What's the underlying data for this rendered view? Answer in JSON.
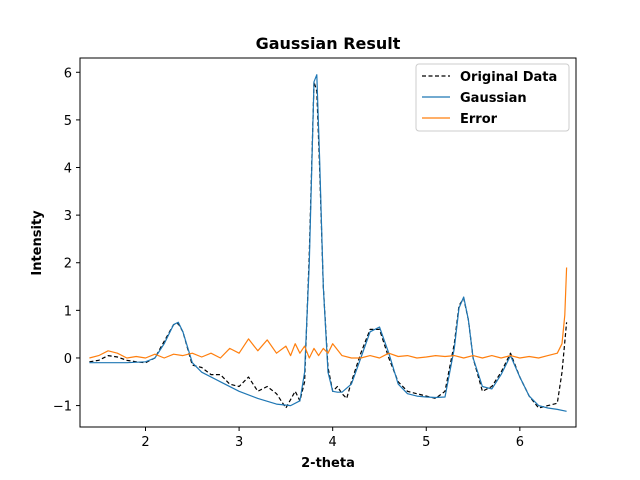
{
  "chart_data": {
    "type": "line",
    "title": "Gaussian Result",
    "xlabel": "2-theta",
    "ylabel": "Intensity",
    "xlim": [
      1.3,
      6.6
    ],
    "ylim": [
      -1.45,
      6.3
    ],
    "xticks": [
      2,
      3,
      4,
      5,
      6
    ],
    "yticks": [
      -1,
      0,
      1,
      2,
      3,
      4,
      5,
      6
    ],
    "grid": false,
    "legend_position": "top-right",
    "series": [
      {
        "name": "Original Data",
        "color": "#000000",
        "dash": "dashed",
        "x": [
          1.4,
          1.5,
          1.6,
          1.7,
          1.8,
          1.9,
          2.0,
          2.1,
          2.2,
          2.3,
          2.35,
          2.4,
          2.5,
          2.6,
          2.7,
          2.8,
          2.9,
          3.0,
          3.1,
          3.2,
          3.3,
          3.4,
          3.5,
          3.6,
          3.65,
          3.7,
          3.75,
          3.8,
          3.83,
          3.86,
          3.9,
          3.95,
          4.0,
          4.05,
          4.1,
          4.15,
          4.2,
          4.3,
          4.4,
          4.5,
          4.6,
          4.7,
          4.8,
          4.9,
          5.0,
          5.1,
          5.2,
          5.3,
          5.35,
          5.4,
          5.45,
          5.5,
          5.6,
          5.7,
          5.8,
          5.9,
          6.0,
          6.1,
          6.2,
          6.3,
          6.4,
          6.45,
          6.5
        ],
        "values": [
          -0.08,
          -0.05,
          0.05,
          0.02,
          -0.05,
          -0.08,
          -0.1,
          0.0,
          0.35,
          0.7,
          0.72,
          0.55,
          -0.15,
          -0.2,
          -0.35,
          -0.35,
          -0.55,
          -0.6,
          -0.4,
          -0.7,
          -0.6,
          -0.75,
          -1.05,
          -0.7,
          -0.9,
          -0.5,
          2.2,
          5.8,
          5.6,
          4.0,
          1.5,
          -0.2,
          -0.7,
          -0.6,
          -0.75,
          -0.85,
          -0.5,
          0.1,
          0.6,
          0.6,
          0.0,
          -0.5,
          -0.7,
          -0.75,
          -0.8,
          -0.85,
          -0.7,
          0.3,
          1.1,
          1.25,
          0.8,
          0.0,
          -0.7,
          -0.6,
          -0.3,
          0.1,
          -0.4,
          -0.8,
          -1.05,
          -1.0,
          -0.95,
          -0.3,
          0.75
        ]
      },
      {
        "name": "Gaussian",
        "color": "#1f77b4",
        "dash": "solid",
        "x": [
          1.4,
          1.6,
          1.8,
          2.0,
          2.1,
          2.2,
          2.3,
          2.35,
          2.4,
          2.5,
          2.6,
          2.8,
          3.0,
          3.2,
          3.4,
          3.55,
          3.65,
          3.7,
          3.75,
          3.8,
          3.83,
          3.86,
          3.9,
          3.95,
          4.0,
          4.05,
          4.1,
          4.2,
          4.3,
          4.4,
          4.5,
          4.6,
          4.7,
          4.8,
          4.9,
          5.0,
          5.1,
          5.2,
          5.3,
          5.35,
          5.4,
          5.45,
          5.5,
          5.6,
          5.7,
          5.8,
          5.9,
          6.0,
          6.1,
          6.2,
          6.3,
          6.4,
          6.5
        ],
        "values": [
          -0.1,
          -0.1,
          -0.1,
          -0.08,
          0.0,
          0.3,
          0.7,
          0.75,
          0.55,
          -0.1,
          -0.3,
          -0.5,
          -0.7,
          -0.85,
          -0.97,
          -1.0,
          -0.9,
          -0.3,
          2.0,
          5.8,
          5.95,
          4.2,
          1.5,
          -0.3,
          -0.7,
          -0.72,
          -0.72,
          -0.55,
          0.0,
          0.55,
          0.65,
          0.1,
          -0.55,
          -0.75,
          -0.8,
          -0.82,
          -0.83,
          -0.82,
          0.2,
          1.05,
          1.28,
          0.8,
          0.0,
          -0.6,
          -0.65,
          -0.35,
          0.05,
          -0.4,
          -0.8,
          -1.0,
          -1.05,
          -1.08,
          -1.12
        ]
      },
      {
        "name": "Error",
        "color": "#ff7f0e",
        "dash": "solid",
        "x": [
          1.4,
          1.5,
          1.6,
          1.7,
          1.8,
          1.9,
          2.0,
          2.1,
          2.2,
          2.3,
          2.4,
          2.5,
          2.6,
          2.7,
          2.8,
          2.9,
          3.0,
          3.1,
          3.2,
          3.3,
          3.4,
          3.5,
          3.55,
          3.6,
          3.65,
          3.7,
          3.75,
          3.8,
          3.85,
          3.9,
          3.95,
          4.0,
          4.1,
          4.2,
          4.3,
          4.4,
          4.5,
          4.6,
          4.7,
          4.8,
          4.9,
          5.0,
          5.1,
          5.2,
          5.3,
          5.4,
          5.5,
          5.6,
          5.7,
          5.8,
          5.9,
          6.0,
          6.1,
          6.2,
          6.3,
          6.4,
          6.45,
          6.48,
          6.5
        ],
        "values": [
          0.0,
          0.05,
          0.15,
          0.1,
          0.0,
          0.03,
          0.0,
          0.08,
          0.0,
          0.08,
          0.05,
          0.1,
          0.02,
          0.1,
          0.0,
          0.2,
          0.1,
          0.4,
          0.15,
          0.38,
          0.1,
          0.25,
          0.05,
          0.3,
          0.1,
          0.25,
          0.0,
          0.2,
          0.05,
          0.2,
          0.1,
          0.3,
          0.05,
          0.0,
          0.0,
          0.05,
          0.0,
          0.1,
          0.03,
          0.05,
          0.0,
          0.02,
          0.05,
          0.03,
          0.05,
          0.0,
          0.05,
          0.0,
          0.05,
          0.0,
          0.05,
          0.0,
          0.03,
          0.0,
          0.05,
          0.1,
          0.3,
          0.9,
          1.9
        ]
      }
    ]
  }
}
